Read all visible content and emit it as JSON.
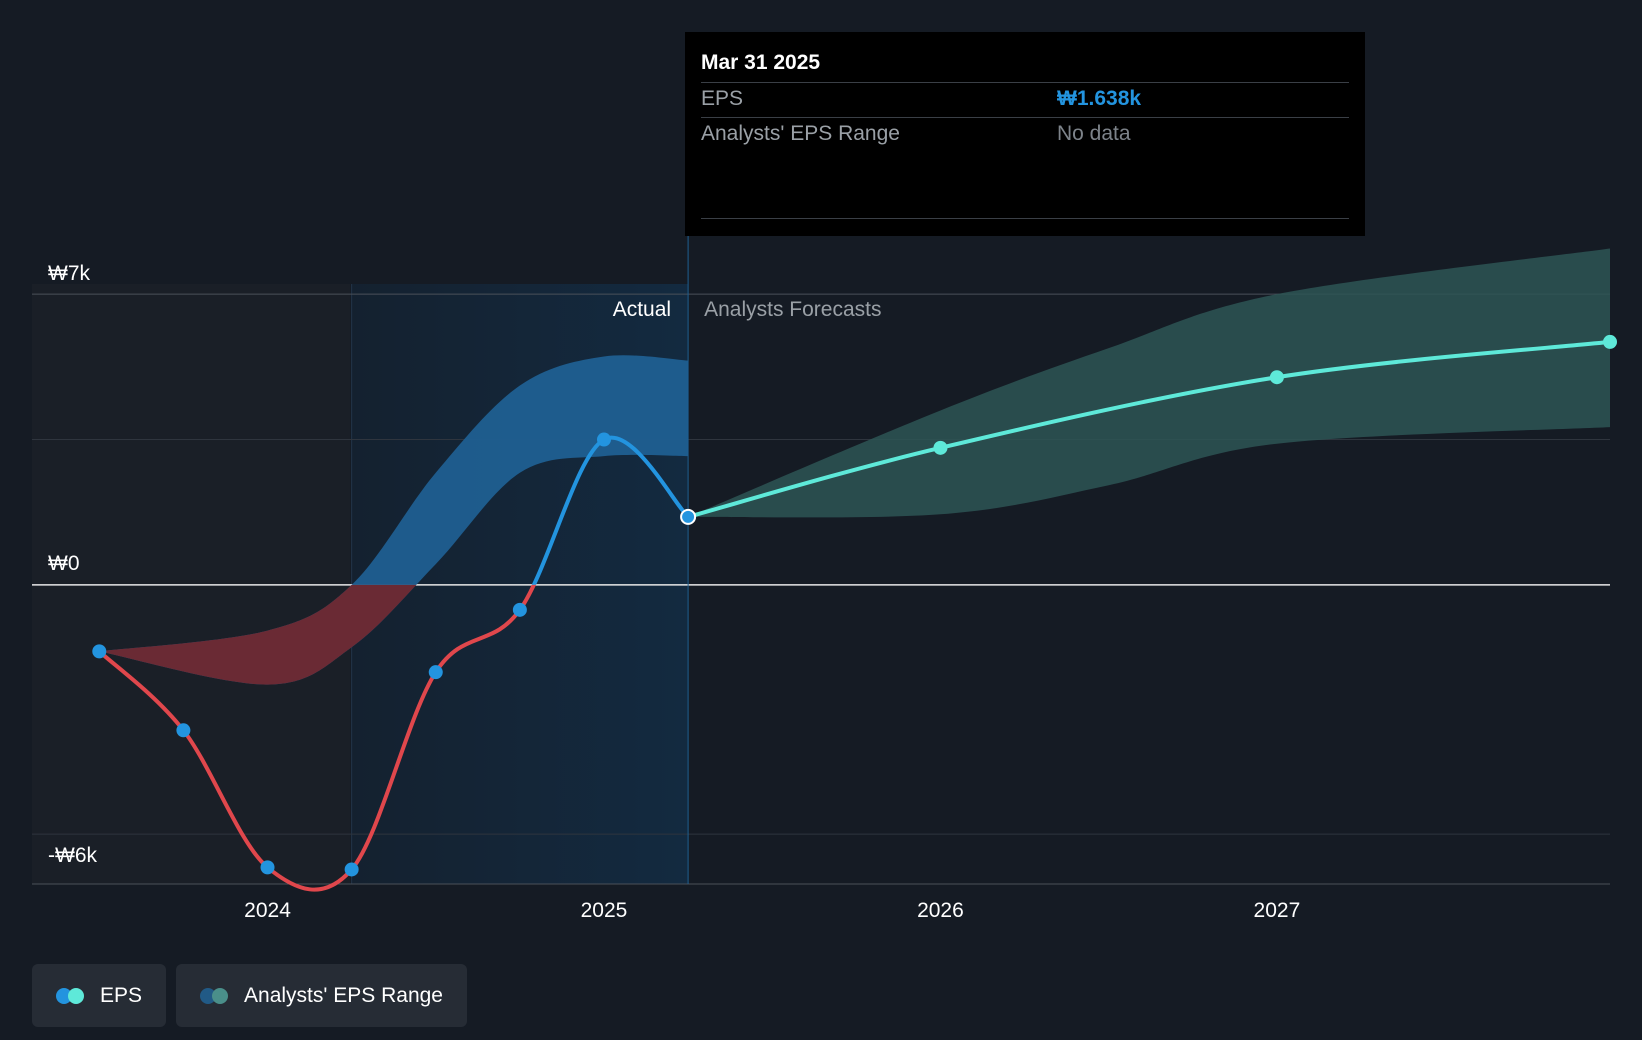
{
  "tooltip": {
    "date": "Mar 31 2025",
    "rows": [
      {
        "label": "EPS",
        "value": "₩1.638k"
      },
      {
        "label": "Analysts' EPS Range",
        "value": "No data"
      }
    ]
  },
  "legend": [
    {
      "label": "EPS",
      "colors": [
        "#2394df",
        "#5ee9d9"
      ]
    },
    {
      "label": "Analysts' EPS Range",
      "colors": [
        "#215a86",
        "#4a8f8a"
      ]
    }
  ],
  "colors": {
    "background": "#151b24",
    "eps_actual_positive": "#2394df",
    "eps_actual_negative": "#e0474c",
    "eps_forecast": "#5ee9d9",
    "range_past": "#1f5f91",
    "range_past_negative": "#6a2a34",
    "range_forecast": "#2d5555",
    "past_highlight": "#132a40"
  },
  "chart_data": {
    "type": "line",
    "y_ticks": [
      {
        "value": 7000,
        "label": "₩7k"
      },
      {
        "value": 0,
        "label": "₩0"
      },
      {
        "value": -6000,
        "label": "-₩6k"
      }
    ],
    "x_ticks": [
      {
        "value": 2024.0,
        "label": "2024"
      },
      {
        "value": 2025.0,
        "label": "2025"
      },
      {
        "value": 2026.0,
        "label": "2026"
      },
      {
        "value": 2027.0,
        "label": "2027"
      }
    ],
    "xlim": [
      2023.3,
      2027.99
    ],
    "ylim": [
      -7200,
      8400
    ],
    "section_labels": {
      "actual": "Actual",
      "forecast": "Analysts Forecasts"
    },
    "divider_x": 2025.25,
    "highlight_start_x": 2024.25,
    "series": [
      {
        "name": "EPS",
        "kind": "actual",
        "x": [
          2023.5,
          2023.75,
          2024.0,
          2024.25,
          2024.5,
          2024.75,
          2025.0,
          2025.25
        ],
        "y": [
          -1600,
          -3500,
          -6800,
          -6850,
          -2100,
          -600,
          3500,
          1638
        ]
      },
      {
        "name": "EPS",
        "kind": "forecast",
        "x": [
          2025.25,
          2026.0,
          2027.0,
          2027.99
        ],
        "y": [
          1638,
          3300,
          5000,
          5850
        ]
      }
    ],
    "range_actual": {
      "x": [
        2023.5,
        2024.0,
        2024.25,
        2024.5,
        2024.75,
        2025.0,
        2025.25
      ],
      "low": [
        -1600,
        -2400,
        -1500,
        500,
        2700,
        3100,
        3100
      ],
      "high": [
        -1600,
        -1100,
        0,
        2700,
        4800,
        5500,
        5400
      ]
    },
    "range_forecast": {
      "x": [
        2025.25,
        2026.0,
        2026.5,
        2027.0,
        2027.99
      ],
      "low": [
        1638,
        1700,
        2400,
        3400,
        3800
      ],
      "high": [
        1638,
        4200,
        5700,
        7000,
        8100
      ]
    },
    "highlight_point": {
      "x": 2025.25,
      "y": 1638
    }
  }
}
